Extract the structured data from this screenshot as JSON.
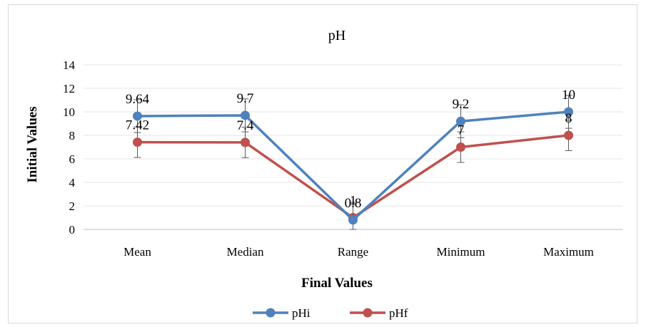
{
  "chart_data": {
    "type": "line",
    "title": "pH",
    "xlabel": "Final Values",
    "ylabel": "Initial Values",
    "categories": [
      "Mean",
      "Median",
      "Range",
      "Minimum",
      "Maximum"
    ],
    "ylim": [
      0,
      14
    ],
    "yticks": [
      0,
      2,
      4,
      6,
      8,
      10,
      12,
      14
    ],
    "grid": true,
    "legend_position": "bottom",
    "series": [
      {
        "name": "pHi",
        "color": "#4f81bd",
        "values": [
          9.64,
          9.7,
          0.8,
          9.2,
          10
        ],
        "labels": [
          "9.64",
          "9.7",
          "0.8",
          "9.2",
          "10"
        ],
        "error": 1.4
      },
      {
        "name": "pHf",
        "color": "#c0504d",
        "values": [
          7.42,
          7.4,
          1,
          7,
          8
        ],
        "labels": [
          "7.42",
          "7.4",
          "1",
          "7",
          "8"
        ],
        "error": 1.3
      }
    ]
  }
}
